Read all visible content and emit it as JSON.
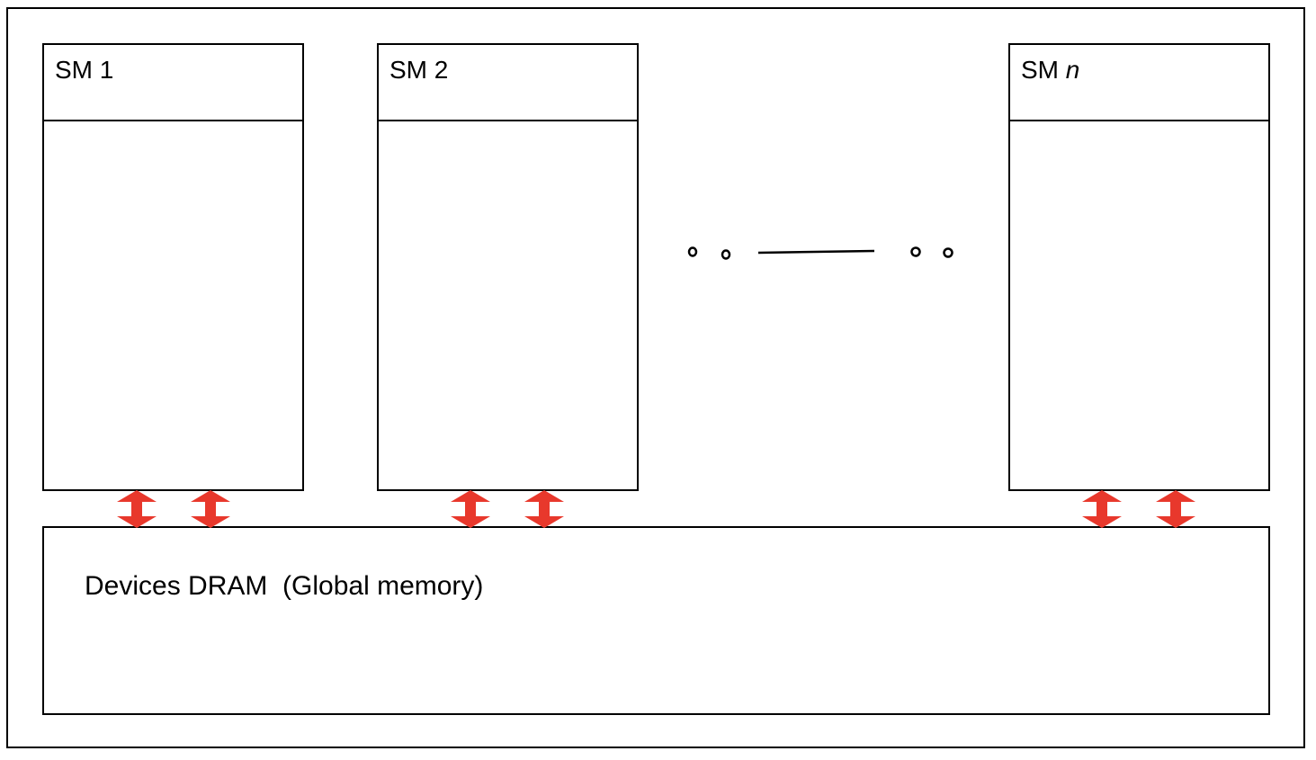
{
  "sms": [
    {
      "label": "SM 1",
      "suffix": ""
    },
    {
      "label": "SM 2",
      "suffix": ""
    },
    {
      "label": "SM ",
      "suffix": "n"
    }
  ],
  "dram": {
    "label": "Devices DRAM  (Global memory)"
  },
  "colors": {
    "arrow": "#e8382c",
    "stroke": "#000000",
    "background": "#ffffff"
  }
}
